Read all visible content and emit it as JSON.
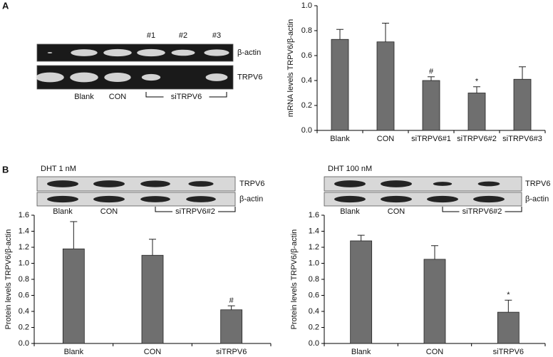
{
  "chart_data": [
    {
      "type": "bar",
      "ylabel": "mRNA levels TRPV6/β-actin",
      "categories": [
        "Blank",
        "CON",
        "siTRPV6#1",
        "siTRPV6#2",
        "siTRPV6#3"
      ],
      "values": [
        0.73,
        0.71,
        0.4,
        0.3,
        0.41
      ],
      "errors": [
        0.08,
        0.15,
        0.03,
        0.05,
        0.1
      ],
      "annotations": [
        {
          "category": "siTRPV6#1",
          "text": "#"
        },
        {
          "category": "siTRPV6#2",
          "text": "*"
        }
      ],
      "color": "#6f6f6f",
      "ylim": [
        0,
        1
      ],
      "yticks": [
        {
          "value": 0,
          "label": "0.0"
        },
        {
          "value": 0.2,
          "label": "0.2"
        },
        {
          "value": 0.4,
          "label": "0.4"
        },
        {
          "value": 0.6,
          "label": "0.6"
        },
        {
          "value": 0.8,
          "label": "0.8"
        },
        {
          "value": 1,
          "label": "1.0"
        }
      ]
    },
    {
      "type": "bar",
      "ylabel": "Protein levels TRPV6/β-actin",
      "categories": [
        "Blank",
        "CON",
        "siTRPV6"
      ],
      "values": [
        1.18,
        1.1,
        0.42
      ],
      "errors": [
        0.34,
        0.2,
        0.05
      ],
      "annotations": [
        {
          "category": "siTRPV6",
          "text": "#"
        }
      ],
      "color": "#6f6f6f",
      "ylim": [
        0,
        1.6
      ],
      "yticks": [
        {
          "value": 0,
          "label": "0.0"
        },
        {
          "value": 0.2,
          "label": "0.2"
        },
        {
          "value": 0.4,
          "label": "0.4"
        },
        {
          "value": 0.6,
          "label": "0.6"
        },
        {
          "value": 0.8,
          "label": "0.8"
        },
        {
          "value": 1,
          "label": "1.0"
        },
        {
          "value": 1.2,
          "label": "1.2"
        },
        {
          "value": 1.4,
          "label": "1.4"
        },
        {
          "value": 1.6,
          "label": "1.6"
        }
      ]
    },
    {
      "type": "bar",
      "ylabel": "Protein levels TRPV6/β-actin",
      "categories": [
        "Blank",
        "CON",
        "siTRPV6"
      ],
      "values": [
        1.28,
        1.05,
        0.39
      ],
      "errors": [
        0.07,
        0.17,
        0.15
      ],
      "annotations": [
        {
          "category": "siTRPV6",
          "text": "*"
        }
      ],
      "color": "#6f6f6f",
      "ylim": [
        0,
        1.6
      ],
      "yticks": [
        {
          "value": 0,
          "label": "0.0"
        },
        {
          "value": 0.2,
          "label": "0.2"
        },
        {
          "value": 0.4,
          "label": "0.4"
        },
        {
          "value": 0.6,
          "label": "0.6"
        },
        {
          "value": 0.8,
          "label": "0.8"
        },
        {
          "value": 1,
          "label": "1.0"
        },
        {
          "value": 1.2,
          "label": "1.2"
        },
        {
          "value": 1.4,
          "label": "1.4"
        },
        {
          "value": 1.6,
          "label": "1.6"
        }
      ]
    }
  ],
  "figure": {
    "panel_labels": [
      "A",
      "B"
    ],
    "blots": [
      {
        "lane_numbers": [
          "#1",
          "#2",
          "#3"
        ],
        "rows": [
          "β-actin",
          "TRPV6"
        ],
        "lanes": [
          "Blank",
          "CON"
        ],
        "group": "siTRPV6"
      },
      {
        "title": "DHT 1 nM",
        "rows": [
          "TRPV6",
          "β-actin"
        ],
        "lanes": [
          "Blank",
          "CON"
        ],
        "group": "siTRPV6#2"
      },
      {
        "title": "DHT 100 nM",
        "rows": [
          "TRPV6",
          "β-actin"
        ],
        "lanes": [
          "Blank",
          "CON"
        ],
        "group": "siTRPV6#2"
      }
    ]
  }
}
